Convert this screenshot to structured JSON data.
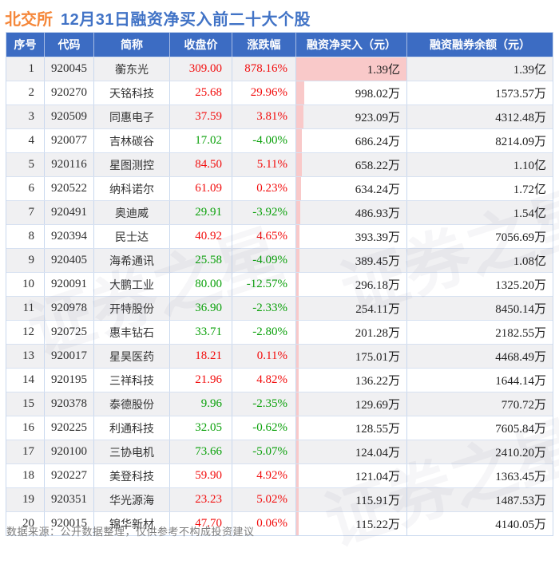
{
  "title": {
    "badge": "北交所",
    "text": "12月31日融资净买入前二十大个股"
  },
  "watermark": "证券之星",
  "footer": "数据来源：公开数据整理，仅供参考不构成投资建议",
  "colors": {
    "header_bg": "#3c6cc3",
    "title_blue": "#4173c6",
    "badge_orange": "#f5873a",
    "up_red": "#f20d0d",
    "down_green": "#0ba10b",
    "net_bar_pink": "#f9c9c9",
    "alt_row_gray": "#f0f0f2",
    "grid_line": "#c9d8ee"
  },
  "chart_data": {
    "type": "table",
    "title": "北交所12月31日融资净买入前二十大个股",
    "columns": [
      "序号",
      "代码",
      "简称",
      "收盘价",
      "涨跌幅",
      "融资净买入（元）",
      "融资融券余额（元）"
    ],
    "max_net_wan": 13900,
    "rows": [
      {
        "no": "1",
        "code": "920045",
        "name": "蘅东光",
        "close": "309.00",
        "chg": "878.16%",
        "dir": "up",
        "net": "1.39亿",
        "net_wan": 13900,
        "bal": "1.39亿"
      },
      {
        "no": "2",
        "code": "920270",
        "name": "天铭科技",
        "close": "25.68",
        "chg": "29.96%",
        "dir": "up",
        "net": "998.02万",
        "net_wan": 998.02,
        "bal": "1573.57万"
      },
      {
        "no": "3",
        "code": "920509",
        "name": "同惠电子",
        "close": "37.59",
        "chg": "3.81%",
        "dir": "up",
        "net": "923.09万",
        "net_wan": 923.09,
        "bal": "4312.48万"
      },
      {
        "no": "4",
        "code": "920077",
        "name": "吉林碳谷",
        "close": "17.02",
        "chg": "-4.00%",
        "dir": "down",
        "net": "686.24万",
        "net_wan": 686.24,
        "bal": "8214.09万"
      },
      {
        "no": "5",
        "code": "920116",
        "name": "星图测控",
        "close": "84.50",
        "chg": "5.11%",
        "dir": "up",
        "net": "658.22万",
        "net_wan": 658.22,
        "bal": "1.10亿"
      },
      {
        "no": "6",
        "code": "920522",
        "name": "纳科诺尔",
        "close": "61.09",
        "chg": "0.23%",
        "dir": "up",
        "net": "634.24万",
        "net_wan": 634.24,
        "bal": "1.72亿"
      },
      {
        "no": "7",
        "code": "920491",
        "name": "奥迪威",
        "close": "29.91",
        "chg": "-3.92%",
        "dir": "down",
        "net": "486.93万",
        "net_wan": 486.93,
        "bal": "1.54亿"
      },
      {
        "no": "8",
        "code": "920394",
        "name": "民士达",
        "close": "40.92",
        "chg": "4.65%",
        "dir": "up",
        "net": "393.39万",
        "net_wan": 393.39,
        "bal": "7056.69万"
      },
      {
        "no": "9",
        "code": "920405",
        "name": "海希通讯",
        "close": "25.58",
        "chg": "-4.09%",
        "dir": "down",
        "net": "389.45万",
        "net_wan": 389.45,
        "bal": "1.08亿"
      },
      {
        "no": "10",
        "code": "920091",
        "name": "大鹏工业",
        "close": "80.00",
        "chg": "-12.57%",
        "dir": "down",
        "net": "296.18万",
        "net_wan": 296.18,
        "bal": "1325.20万"
      },
      {
        "no": "11",
        "code": "920978",
        "name": "开特股份",
        "close": "36.90",
        "chg": "-2.33%",
        "dir": "down",
        "net": "254.11万",
        "net_wan": 254.11,
        "bal": "8450.14万"
      },
      {
        "no": "12",
        "code": "920725",
        "name": "惠丰钻石",
        "close": "33.71",
        "chg": "-2.80%",
        "dir": "down",
        "net": "201.28万",
        "net_wan": 201.28,
        "bal": "2182.55万"
      },
      {
        "no": "13",
        "code": "920017",
        "name": "星昊医药",
        "close": "18.21",
        "chg": "0.11%",
        "dir": "up",
        "net": "175.01万",
        "net_wan": 175.01,
        "bal": "4468.49万"
      },
      {
        "no": "14",
        "code": "920195",
        "name": "三祥科技",
        "close": "21.96",
        "chg": "4.82%",
        "dir": "up",
        "net": "136.22万",
        "net_wan": 136.22,
        "bal": "1644.14万"
      },
      {
        "no": "15",
        "code": "920378",
        "name": "泰德股份",
        "close": "9.96",
        "chg": "-2.35%",
        "dir": "down",
        "net": "129.69万",
        "net_wan": 129.69,
        "bal": "770.72万"
      },
      {
        "no": "16",
        "code": "920225",
        "name": "利通科技",
        "close": "32.05",
        "chg": "-0.62%",
        "dir": "down",
        "net": "128.55万",
        "net_wan": 128.55,
        "bal": "7605.84万"
      },
      {
        "no": "17",
        "code": "920100",
        "name": "三协电机",
        "close": "73.66",
        "chg": "-5.07%",
        "dir": "down",
        "net": "124.04万",
        "net_wan": 124.04,
        "bal": "2410.20万"
      },
      {
        "no": "18",
        "code": "920227",
        "name": "美登科技",
        "close": "59.90",
        "chg": "4.92%",
        "dir": "up",
        "net": "121.04万",
        "net_wan": 121.04,
        "bal": "1363.45万"
      },
      {
        "no": "19",
        "code": "920351",
        "name": "华光源海",
        "close": "23.23",
        "chg": "5.02%",
        "dir": "up",
        "net": "115.91万",
        "net_wan": 115.91,
        "bal": "1487.53万"
      },
      {
        "no": "20",
        "code": "920015",
        "name": "锦华新材",
        "close": "47.70",
        "chg": "0.06%",
        "dir": "up",
        "net": "115.22万",
        "net_wan": 115.22,
        "bal": "4140.05万"
      }
    ]
  }
}
